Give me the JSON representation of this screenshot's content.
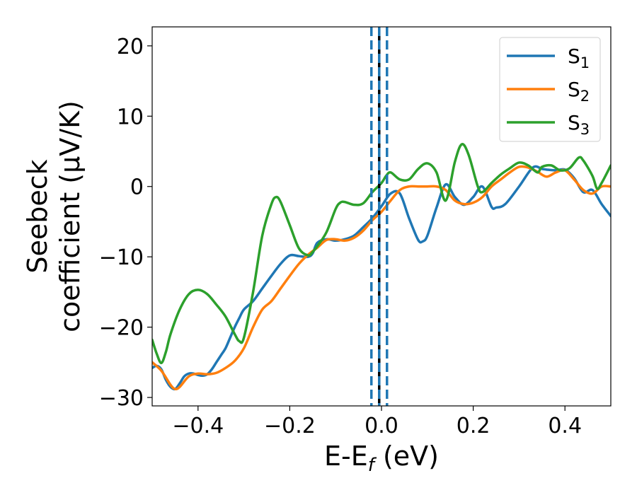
{
  "chart_data": {
    "type": "line",
    "xlabel": {
      "main": "E-E",
      "sub": "f",
      "suffix": " (eV)"
    },
    "ylabel": {
      "line1": "Seebeck",
      "line2": "coefficient  (μV/K)"
    },
    "xlim": [
      -0.5,
      0.5
    ],
    "ylim": [
      -31.2,
      22.7
    ],
    "xticks": [
      -0.4,
      -0.2,
      0.0,
      0.2,
      0.4
    ],
    "xtick_labels": [
      "−0.4",
      "−0.2",
      "0.0",
      "0.2",
      "0.4"
    ],
    "yticks": [
      -30,
      -20,
      -10,
      0,
      10,
      20
    ],
    "ytick_labels": [
      "−30",
      "−20",
      "−10",
      "0",
      "10",
      "20"
    ],
    "grid": false,
    "legend_position": "top-right",
    "vlines": [
      {
        "x": -0.005,
        "style": "solid",
        "color": "#000000"
      },
      {
        "x": -0.022,
        "style": "dashed",
        "color": "#1f77b4"
      },
      {
        "x": -0.005,
        "style": "dashed",
        "color": "#1f77b4"
      },
      {
        "x": 0.012,
        "style": "dashed",
        "color": "#1f77b4"
      }
    ],
    "series": [
      {
        "name": "S",
        "sub": "1",
        "color": "#1f77b4",
        "x": [
          -0.5,
          -0.49,
          -0.48,
          -0.47,
          -0.46,
          -0.45,
          -0.44,
          -0.43,
          -0.42,
          -0.41,
          -0.4,
          -0.39,
          -0.38,
          -0.37,
          -0.36,
          -0.35,
          -0.34,
          -0.33,
          -0.32,
          -0.31,
          -0.3,
          -0.28,
          -0.26,
          -0.24,
          -0.22,
          -0.2,
          -0.18,
          -0.16,
          -0.15,
          -0.14,
          -0.12,
          -0.1,
          -0.08,
          -0.06,
          -0.04,
          -0.02,
          0.0,
          0.02,
          0.04,
          0.06,
          0.08,
          0.09,
          0.1,
          0.12,
          0.14,
          0.16,
          0.18,
          0.2,
          0.22,
          0.24,
          0.25,
          0.27,
          0.3,
          0.33,
          0.35,
          0.36,
          0.38,
          0.4,
          0.42,
          0.44,
          0.46,
          0.48,
          0.5
        ],
        "y": [
          -25.8,
          -25.5,
          -26.0,
          -27.5,
          -28.5,
          -28.8,
          -28.0,
          -27.0,
          -26.6,
          -26.6,
          -26.8,
          -26.9,
          -26.7,
          -26.0,
          -25.0,
          -24.0,
          -23.0,
          -21.5,
          -20.0,
          -18.7,
          -17.5,
          -16.3,
          -14.5,
          -12.7,
          -11.0,
          -9.8,
          -9.9,
          -10.0,
          -9.5,
          -8.0,
          -7.5,
          -7.7,
          -7.5,
          -7.0,
          -5.8,
          -4.5,
          -2.8,
          -1.0,
          -1.0,
          -4.5,
          -7.6,
          -7.8,
          -7.0,
          -3.0,
          0.3,
          -1.5,
          -2.6,
          -1.5,
          0.0,
          -2.9,
          -3.0,
          -2.5,
          0.0,
          2.7,
          2.5,
          2.4,
          2.3,
          2.4,
          1.2,
          -0.8,
          -0.5,
          -2.5,
          -4.2
        ]
      },
      {
        "name": "S",
        "sub": "2",
        "color": "#ff7f0e",
        "x": [
          -0.5,
          -0.48,
          -0.46,
          -0.45,
          -0.44,
          -0.42,
          -0.4,
          -0.38,
          -0.36,
          -0.34,
          -0.32,
          -0.3,
          -0.28,
          -0.26,
          -0.24,
          -0.22,
          -0.2,
          -0.18,
          -0.16,
          -0.14,
          -0.12,
          -0.1,
          -0.08,
          -0.06,
          -0.04,
          -0.02,
          0.0,
          0.02,
          0.04,
          0.06,
          0.08,
          0.1,
          0.12,
          0.14,
          0.16,
          0.18,
          0.2,
          0.22,
          0.24,
          0.26,
          0.28,
          0.3,
          0.32,
          0.34,
          0.36,
          0.38,
          0.4,
          0.42,
          0.44,
          0.46,
          0.48,
          0.5
        ],
        "y": [
          -25.0,
          -26.2,
          -28.2,
          -28.8,
          -28.5,
          -27.0,
          -26.6,
          -26.7,
          -26.5,
          -25.8,
          -24.8,
          -23.0,
          -20.0,
          -17.5,
          -16.3,
          -14.5,
          -12.7,
          -11.0,
          -9.7,
          -8.7,
          -7.6,
          -7.5,
          -7.7,
          -7.3,
          -6.3,
          -4.8,
          -3.6,
          -2.0,
          -0.5,
          0.0,
          0.0,
          0.0,
          0.0,
          -0.5,
          -2.0,
          -2.5,
          -2.3,
          -1.5,
          0.0,
          1.0,
          2.0,
          2.8,
          2.7,
          2.1,
          1.4,
          2.0,
          2.3,
          1.0,
          -0.5,
          -1.0,
          0.0,
          0.0
        ]
      },
      {
        "name": "S",
        "sub": "3",
        "color": "#2ca02c",
        "x": [
          -0.5,
          -0.49,
          -0.48,
          -0.47,
          -0.46,
          -0.44,
          -0.42,
          -0.4,
          -0.38,
          -0.36,
          -0.34,
          -0.32,
          -0.31,
          -0.3,
          -0.28,
          -0.26,
          -0.24,
          -0.23,
          -0.22,
          -0.2,
          -0.18,
          -0.16,
          -0.15,
          -0.14,
          -0.12,
          -0.1,
          -0.09,
          -0.08,
          -0.06,
          -0.04,
          -0.02,
          0.0,
          0.01,
          0.02,
          0.04,
          0.06,
          0.08,
          0.1,
          0.12,
          0.14,
          0.16,
          0.175,
          0.19,
          0.21,
          0.22,
          0.24,
          0.26,
          0.28,
          0.3,
          0.32,
          0.34,
          0.35,
          0.37,
          0.39,
          0.41,
          0.43,
          0.44,
          0.46,
          0.47,
          0.48,
          0.5
        ],
        "y": [
          -21.8,
          -23.8,
          -25.1,
          -23.5,
          -21.0,
          -17.5,
          -15.3,
          -14.7,
          -15.3,
          -16.8,
          -18.5,
          -21.0,
          -22.0,
          -21.5,
          -15.0,
          -7.0,
          -2.5,
          -1.5,
          -2.2,
          -5.5,
          -8.8,
          -9.8,
          -9.3,
          -8.5,
          -6.5,
          -3.2,
          -2.3,
          -2.2,
          -2.6,
          -2.4,
          -0.8,
          0.5,
          1.5,
          2.0,
          1.0,
          1.0,
          2.5,
          3.3,
          2.0,
          -2.0,
          3.5,
          6.0,
          4.5,
          0.0,
          -0.8,
          0.5,
          1.7,
          2.6,
          3.4,
          3.0,
          2.0,
          2.8,
          3.0,
          2.3,
          2.6,
          4.1,
          3.7,
          1.5,
          -0.3,
          0.5,
          3.0
        ]
      }
    ]
  }
}
